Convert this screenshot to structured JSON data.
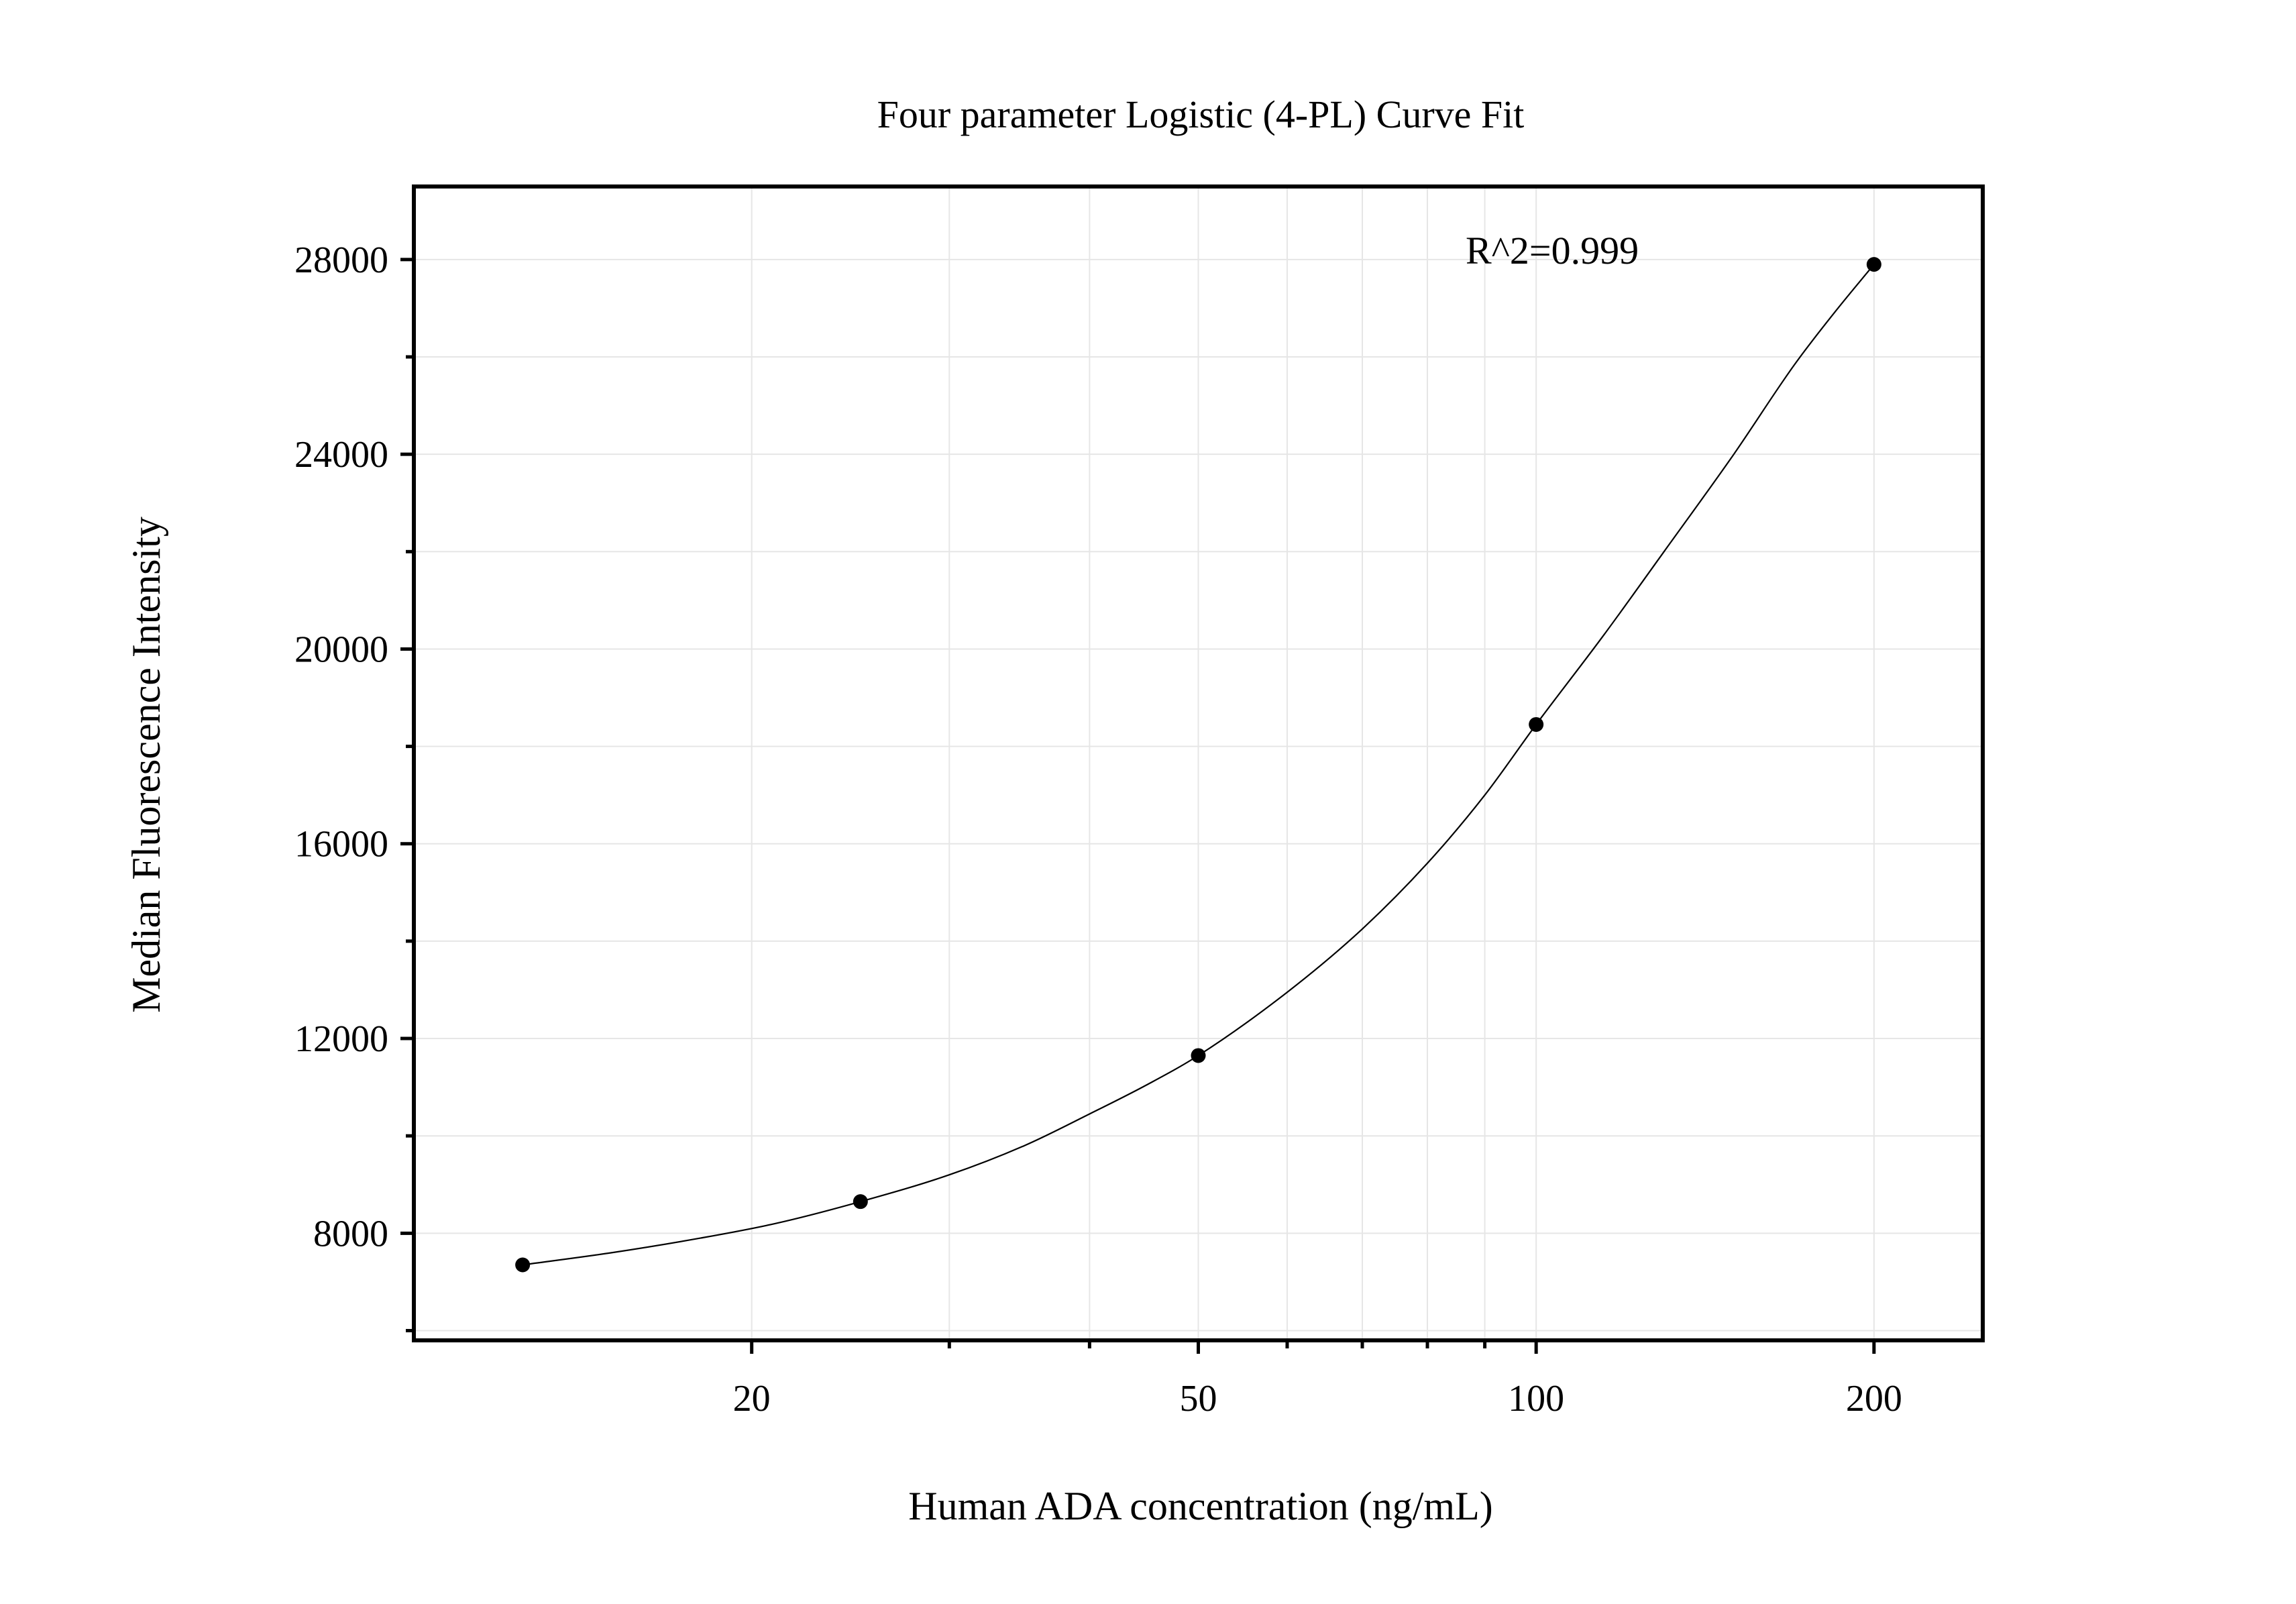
{
  "chart_data": {
    "type": "scatter",
    "title": "Four parameter Logistic (4-PL) Curve Fit",
    "xlabel": "Human ADA concentration (ng/mL)",
    "ylabel": "Median Fluorescence Intensity",
    "x_scale": "log",
    "xlim": [
      10.0,
      250.0
    ],
    "ylim": [
      5800,
      29500
    ],
    "x_ticks": [
      20,
      50,
      100,
      200
    ],
    "x_minor_ticks": [
      30,
      40,
      60,
      70,
      80,
      90
    ],
    "y_ticks": [
      8000,
      12000,
      16000,
      20000,
      24000,
      28000
    ],
    "y_minor_ticks": [
      6000,
      10000,
      14000,
      18000,
      22000,
      26000
    ],
    "grid": true,
    "annotation": "R^2=0.999",
    "points": [
      {
        "x": 12.5,
        "y": 7350
      },
      {
        "x": 25,
        "y": 8650
      },
      {
        "x": 50,
        "y": 11650
      },
      {
        "x": 100,
        "y": 18450
      },
      {
        "x": 200,
        "y": 27900
      }
    ],
    "fit_curve": {
      "model": "4PL",
      "x": [
        12.5,
        15,
        18,
        21,
        25,
        30,
        35,
        40,
        45,
        50,
        60,
        70,
        80,
        90,
        100,
        115,
        130,
        150,
        170,
        185,
        200
      ],
      "y": [
        7350,
        7600,
        7900,
        8200,
        8650,
        9200,
        9800,
        10450,
        11050,
        11650,
        12950,
        14250,
        15600,
        17000,
        18450,
        20300,
        22000,
        24000,
        25850,
        26950,
        27900
      ]
    }
  }
}
